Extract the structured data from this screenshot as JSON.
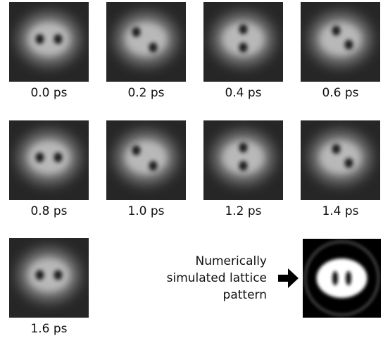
{
  "panels": [
    {
      "label": "0.0 ps"
    },
    {
      "label": "0.2 ps"
    },
    {
      "label": "0.4 ps"
    },
    {
      "label": "0.6 ps"
    },
    {
      "label": "0.8 ps"
    },
    {
      "label": "1.0 ps"
    },
    {
      "label": "1.2 ps"
    },
    {
      "label": "1.4 ps"
    },
    {
      "label": "1.6 ps"
    }
  ],
  "simulation": {
    "caption_lines": [
      "Numerically",
      "simulated lattice",
      "pattern"
    ]
  }
}
